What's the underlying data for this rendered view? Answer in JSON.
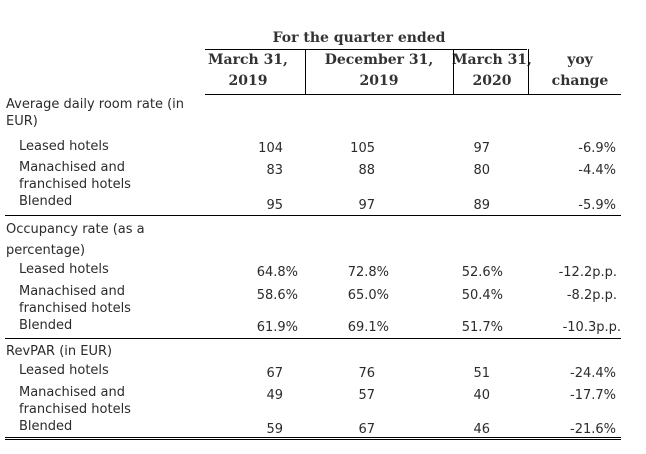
{
  "header": {
    "group_title": "For the quarter ended",
    "col1": [
      "March 31,",
      "2019"
    ],
    "col2": [
      "December 31,",
      "2019"
    ],
    "col3": [
      "March 31,",
      "2020"
    ],
    "col4": [
      "yoy",
      "change"
    ]
  },
  "sections": [
    {
      "title_lines": [
        "Average daily room rate (in",
        "EUR)"
      ],
      "rows": [
        {
          "label": [
            "Leased hotels"
          ],
          "v1": "104",
          "v2": "105",
          "v3": "97",
          "v4": "-6.9%"
        },
        {
          "label": [
            "Manachised and",
            "franchised hotels"
          ],
          "v1": "83",
          "v2": "88",
          "v3": "80",
          "v4": "-4.4%"
        },
        {
          "label": [
            "Blended"
          ],
          "v1": "95",
          "v2": "97",
          "v3": "89",
          "v4": "-5.9%"
        }
      ]
    },
    {
      "title_lines": [
        "Occupancy rate (as a",
        "percentage)"
      ],
      "rows": [
        {
          "label": [
            "Leased hotels"
          ],
          "v1": "64.8%",
          "v2": "72.8%",
          "v3": "52.6%",
          "v4": "-12.2p.p."
        },
        {
          "label": [
            "Manachised and",
            "franchised hotels"
          ],
          "v1": "58.6%",
          "v2": "65.0%",
          "v3": "50.4%",
          "v4": "-8.2p.p."
        },
        {
          "label": [
            "Blended"
          ],
          "v1": "61.9%",
          "v2": "69.1%",
          "v3": "51.7%",
          "v4": "-10.3p.p."
        }
      ]
    },
    {
      "title_lines": [
        "RevPAR (in EUR)"
      ],
      "rows": [
        {
          "label": [
            "Leased hotels"
          ],
          "v1": "67",
          "v2": "76",
          "v3": "51",
          "v4": "-24.4%"
        },
        {
          "label": [
            "Manachised and",
            "franchised hotels"
          ],
          "v1": "49",
          "v2": "57",
          "v3": "40",
          "v4": "-17.7%"
        },
        {
          "label": [
            "Blended"
          ],
          "v1": "59",
          "v2": "67",
          "v3": "46",
          "v4": "-21.6%"
        }
      ]
    }
  ]
}
